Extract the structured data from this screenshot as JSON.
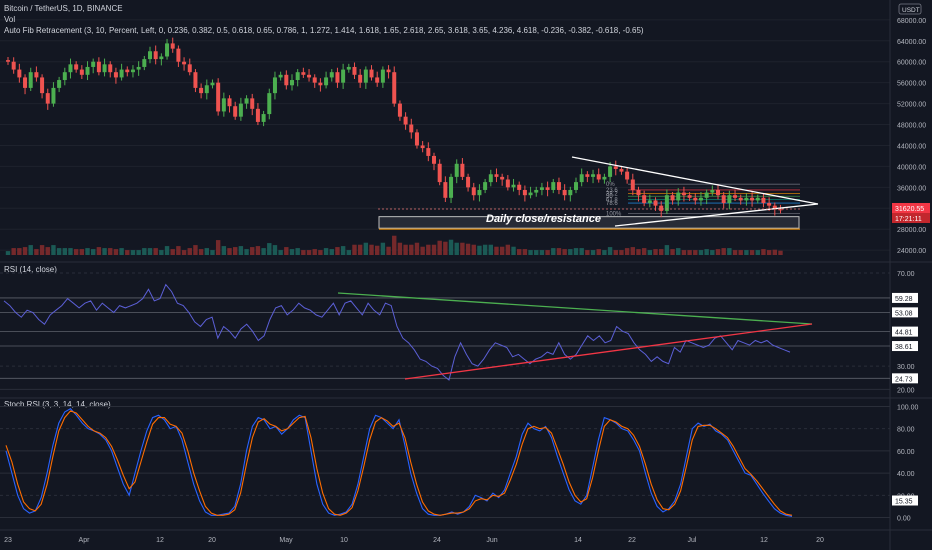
{
  "header": {
    "symbol_line": "Bitcoin / TetherUS, 1D, BINANCE",
    "vol_label": "Vol",
    "fib_line": "Auto Fib Retracement (3, 10, Percent, Left, 0, 0.236, 0.382, 0.5, 0.618, 0.65, 0.786, 1, 1.272, 1.414, 1.618, 1.65, 2.618, 2.65, 3.618, 3.65, 4.236, 4.618, -0.236, -0.382, -0.618, -0.65)"
  },
  "currency_badge": "USDT",
  "price_label": "31620.55",
  "countdown_label": "17:21:11",
  "annotation": "Daily close/resistance",
  "fib_labels": [
    "0%",
    "23.6",
    "38.2",
    "50",
    "61.8",
    "78.6",
    "100%"
  ],
  "colors": {
    "background": "#131722",
    "up": "#26a69a",
    "candle_up": "#4caf50",
    "candle_down": "#ef5350",
    "rsi_line": "#5b5fd6",
    "stoch_k": "#2962ff",
    "stoch_d": "#ff6d00",
    "trend_green": "#4caf50",
    "trend_red": "#f23645",
    "white": "#ffffff",
    "fib_orange": "#ff9800"
  },
  "chart_data": [
    {
      "type": "candlestick",
      "title": "Bitcoin / TetherUS, 1D, BINANCE",
      "y_ticks": [
        24000,
        28000,
        32000,
        36000,
        40000,
        44000,
        48000,
        52000,
        56000,
        60000,
        64000,
        68000
      ],
      "ylim": [
        22500,
        69500
      ],
      "x_ticks": [
        "23",
        "Apr",
        "12",
        "20",
        "May",
        "10",
        "24",
        "Jun",
        "14",
        "22",
        "Jul",
        "12",
        "20"
      ],
      "closes": [
        60000,
        58500,
        57000,
        55000,
        58000,
        57000,
        54000,
        52000,
        55000,
        56500,
        58000,
        59500,
        58500,
        57500,
        59000,
        60000,
        58000,
        59500,
        58000,
        57000,
        58500,
        58000,
        58500,
        59000,
        60500,
        62000,
        60500,
        61000,
        63500,
        62500,
        60000,
        59500,
        58000,
        55000,
        54000,
        55500,
        56000,
        50500,
        53000,
        51500,
        49500,
        52000,
        53000,
        51000,
        48500,
        50000,
        54000,
        57000,
        57500,
        55500,
        56500,
        58000,
        57500,
        57000,
        56000,
        55500,
        57000,
        58000,
        56000,
        58500,
        59000,
        57500,
        56000,
        58500,
        57000,
        56000,
        58500,
        58000,
        52000,
        49500,
        48000,
        46500,
        44000,
        43500,
        42000,
        40500,
        37000,
        34000,
        38000,
        40500,
        38000,
        36000,
        34500,
        35500,
        37000,
        38500,
        38000,
        37500,
        36000,
        36500,
        35500,
        34500,
        35000,
        35500,
        36000,
        35500,
        37000,
        35500,
        34500,
        35500,
        37000,
        38500,
        38000,
        38500,
        37500,
        38000,
        40000,
        39500,
        39000,
        37500,
        35500,
        34500,
        33000,
        33500,
        32500,
        31500,
        34500,
        33500,
        35000,
        34500,
        34000,
        33500,
        34000,
        35000,
        35500,
        34500,
        33000,
        34500,
        34000,
        33500,
        34000,
        33500,
        34000,
        33000,
        32500,
        31800,
        31620
      ],
      "volume_ylim": [
        0,
        100
      ],
      "fib_levels": [
        36600,
        35500,
        34850,
        34300,
        33700,
        33000,
        31000
      ],
      "annotation": "Daily close/resistance",
      "resistance_zone": [
        28200,
        30400
      ]
    },
    {
      "type": "line",
      "title": "RSI (14, close)",
      "y_ticks": [
        20.0,
        30.0,
        70.0
      ],
      "level_labels": [
        "59.28",
        "53.08",
        "44.81",
        "38.61",
        "24.73"
      ],
      "ylim": [
        18,
        73
      ],
      "values": [
        58,
        56,
        53,
        51,
        54,
        53,
        50,
        48,
        52,
        54,
        56,
        59,
        57,
        55,
        57,
        58,
        54,
        57,
        55,
        53,
        56,
        55,
        56,
        57,
        59,
        63,
        58,
        59,
        65,
        62,
        57,
        56,
        53,
        49,
        47,
        50,
        51,
        42,
        47,
        45,
        42,
        46,
        48,
        45,
        41,
        43,
        50,
        55,
        56,
        52,
        54,
        57,
        55,
        54,
        52,
        51,
        54,
        57,
        52,
        57,
        58,
        55,
        52,
        57,
        54,
        52,
        57,
        56,
        47,
        42,
        40,
        37,
        33,
        32,
        30,
        29,
        26,
        24,
        34,
        40,
        35,
        31,
        30,
        33,
        37,
        40,
        39,
        38,
        34,
        35,
        33,
        31,
        33,
        34,
        36,
        35,
        40,
        35,
        33,
        35,
        39,
        43,
        41,
        43,
        40,
        41,
        47,
        45,
        44,
        40,
        37,
        35,
        32,
        34,
        32,
        31,
        38,
        36,
        41,
        40,
        39,
        38,
        39,
        42,
        43,
        40,
        37,
        41,
        40,
        39,
        41,
        40,
        41,
        39,
        38,
        37,
        36
      ]
    },
    {
      "type": "line",
      "title": "Stoch RSI (3, 3, 14, 14, close)",
      "y_ticks": [
        0.0,
        20.0,
        40.0,
        60.0,
        80.0,
        100.0
      ],
      "level_labels": [
        "15.35"
      ],
      "ylim": [
        -4,
        104
      ],
      "series": [
        {
          "values": [
            60,
            40,
            20,
            8,
            4,
            6,
            18,
            40,
            65,
            85,
            95,
            98,
            92,
            85,
            80,
            78,
            75,
            70,
            60,
            45,
            30,
            20,
            40,
            60,
            78,
            90,
            92,
            88,
            80,
            82,
            70,
            50,
            30,
            15,
            5,
            2,
            2,
            3,
            4,
            10,
            30,
            60,
            82,
            90,
            88,
            80,
            82,
            75,
            80,
            88,
            92,
            90,
            60,
            30,
            12,
            4,
            2,
            3,
            5,
            12,
            30,
            55,
            80,
            92,
            90,
            85,
            80,
            88,
            65,
            40,
            22,
            8,
            3,
            2,
            2,
            3,
            5,
            3,
            5,
            10,
            20,
            18,
            15,
            22,
            18,
            25,
            40,
            55,
            75,
            85,
            80,
            78,
            82,
            72,
            55,
            40,
            25,
            15,
            12,
            20,
            45,
            70,
            90,
            88,
            85,
            80,
            78,
            70,
            60,
            40,
            22,
            10,
            5,
            8,
            15,
            30,
            55,
            80,
            85,
            82,
            84,
            78,
            75,
            70,
            60,
            50,
            40,
            38,
            30,
            22,
            15,
            8,
            4,
            2,
            1
          ]
        },
        {
          "values": [
            65,
            50,
            30,
            14,
            8,
            6,
            12,
            30,
            55,
            78,
            90,
            96,
            94,
            88,
            82,
            78,
            76,
            72,
            64,
            52,
            38,
            26,
            32,
            50,
            68,
            84,
            90,
            90,
            84,
            82,
            76,
            60,
            40,
            24,
            10,
            4,
            2,
            2,
            3,
            7,
            22,
            48,
            72,
            86,
            89,
            84,
            82,
            78,
            80,
            85,
            90,
            91,
            72,
            44,
            22,
            8,
            3,
            2,
            4,
            9,
            24,
            46,
            70,
            86,
            90,
            87,
            82,
            85,
            72,
            50,
            30,
            14,
            6,
            3,
            2,
            3,
            4,
            4,
            5,
            8,
            15,
            17,
            16,
            20,
            19,
            22,
            34,
            48,
            66,
            80,
            82,
            80,
            81,
            76,
            62,
            48,
            32,
            20,
            14,
            17,
            36,
            60,
            82,
            88,
            86,
            82,
            80,
            74,
            64,
            48,
            30,
            16,
            8,
            7,
            12,
            24,
            46,
            70,
            82,
            83,
            83,
            80,
            76,
            72,
            64,
            54,
            44,
            39,
            33,
            26,
            19,
            12,
            6,
            3,
            2
          ]
        }
      ]
    }
  ]
}
